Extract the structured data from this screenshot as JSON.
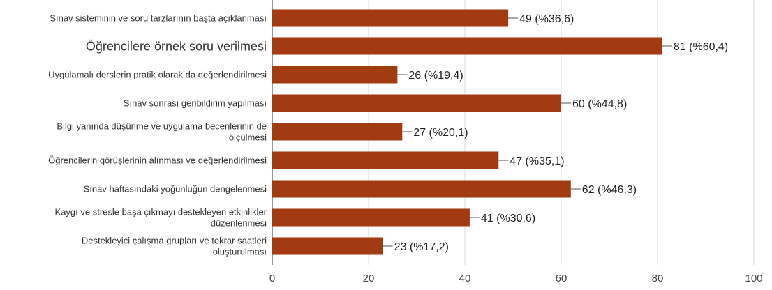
{
  "chart_data": {
    "type": "bar",
    "orientation": "horizontal",
    "title": "",
    "xlabel": "",
    "ylabel": "",
    "xlim": [
      0,
      100
    ],
    "xticks": [
      0,
      20,
      40,
      60,
      80,
      100
    ],
    "grid": "vertical",
    "legend": "none",
    "bar_color": "#a23a12",
    "categories": [
      [
        "Sınav sisteminin ve soru tarzlarının başta açıklanması"
      ],
      [
        "Öğrencilere örnek soru verilmesi"
      ],
      [
        "Uygulamalı derslerin pratik olarak da değerlendirilmesi"
      ],
      [
        "Sınav sonrası geribildirim yapılması"
      ],
      [
        "Bilgi yanında düşünme ve uygulama becerilerinin de",
        "ölçülmesi"
      ],
      [
        "Öğrencilerin görüşlerinin alınması ve değerlendirilmesi"
      ],
      [
        "Sınav haftasındaki yoğunluğun dengelenmesi"
      ],
      [
        "Kaygı ve stresle başa çıkmayı destekleyen etkinlikler",
        "düzenlenmesi"
      ],
      [
        "Destekleyici çalışma grupları ve tekrar saatleri",
        "oluşturulması"
      ]
    ],
    "values": [
      49,
      81,
      26,
      60,
      27,
      47,
      62,
      41,
      23
    ],
    "labels": [
      "49 (%36,6)",
      "81 (%60,4)",
      "26 (%19,4)",
      "60 (%44,8)",
      "27 (%20,1)",
      "47 (%35,1)",
      "62 (%46,3)",
      "41 (%30,6)",
      "23 (%17,2)"
    ]
  }
}
